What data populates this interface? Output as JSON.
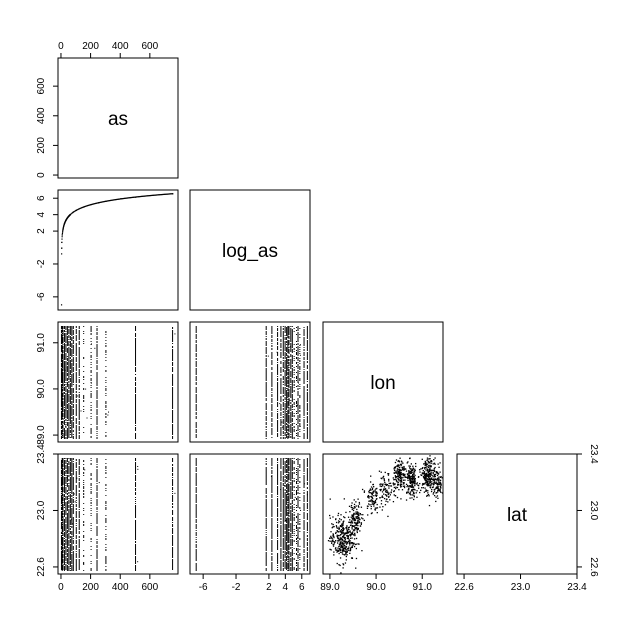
{
  "chart_data": {
    "type": "scatter",
    "subtype": "pairs-matrix-lower-triangle",
    "variables": [
      "as",
      "log_as",
      "lon",
      "lat"
    ],
    "axes": {
      "as": {
        "range": [
          -20,
          790
        ],
        "ticks": [
          0,
          200,
          400,
          600
        ],
        "tick_labels": [
          "0",
          "200",
          "400",
          "600"
        ]
      },
      "log_as": {
        "range": [
          -7.6,
          7.0
        ],
        "ticks": [
          -6,
          -2,
          2,
          4,
          6
        ],
        "tick_labels": [
          "-6",
          "-2",
          "2",
          "4",
          "6"
        ]
      },
      "lon": {
        "range": [
          88.85,
          91.45
        ],
        "ticks": [
          89.0,
          90.0,
          91.0
        ],
        "tick_labels": [
          "89.0",
          "90.0",
          "91.0"
        ]
      },
      "lat": {
        "range": [
          22.55,
          23.4
        ],
        "ticks": [
          22.6,
          23.0,
          23.4
        ],
        "tick_labels": [
          "22.6",
          "23.0",
          "23.4"
        ]
      }
    },
    "as_levels": [
      0,
      5,
      10,
      20,
      30,
      40,
      50,
      60,
      70,
      80,
      100,
      120,
      150,
      200,
      240,
      300,
      500,
      750
    ],
    "as_vs_log_as": {
      "x": [
        0.001,
        0.5,
        1,
        2,
        5,
        10,
        20,
        30,
        50,
        80,
        100,
        150,
        200,
        250,
        300,
        400,
        500,
        750
      ],
      "y": [
        -6.9,
        -0.7,
        0.0,
        0.7,
        1.6,
        2.3,
        3.0,
        3.4,
        3.9,
        4.4,
        4.6,
        5.0,
        5.3,
        5.5,
        5.7,
        6.0,
        6.2,
        6.6
      ]
    },
    "lon_lat_clusters": [
      {
        "lon": 89.25,
        "lat": 22.8,
        "count": 320
      },
      {
        "lon": 89.55,
        "lat": 22.95,
        "count": 140
      },
      {
        "lon": 89.9,
        "lat": 23.1,
        "count": 90
      },
      {
        "lon": 90.2,
        "lat": 23.15,
        "count": 80
      },
      {
        "lon": 90.5,
        "lat": 23.25,
        "count": 160
      },
      {
        "lon": 90.75,
        "lat": 23.22,
        "count": 170
      },
      {
        "lon": 91.1,
        "lat": 23.25,
        "count": 200
      },
      {
        "lon": 91.3,
        "lat": 23.2,
        "count": 120
      }
    ],
    "grid": false,
    "legend": "none"
  }
}
